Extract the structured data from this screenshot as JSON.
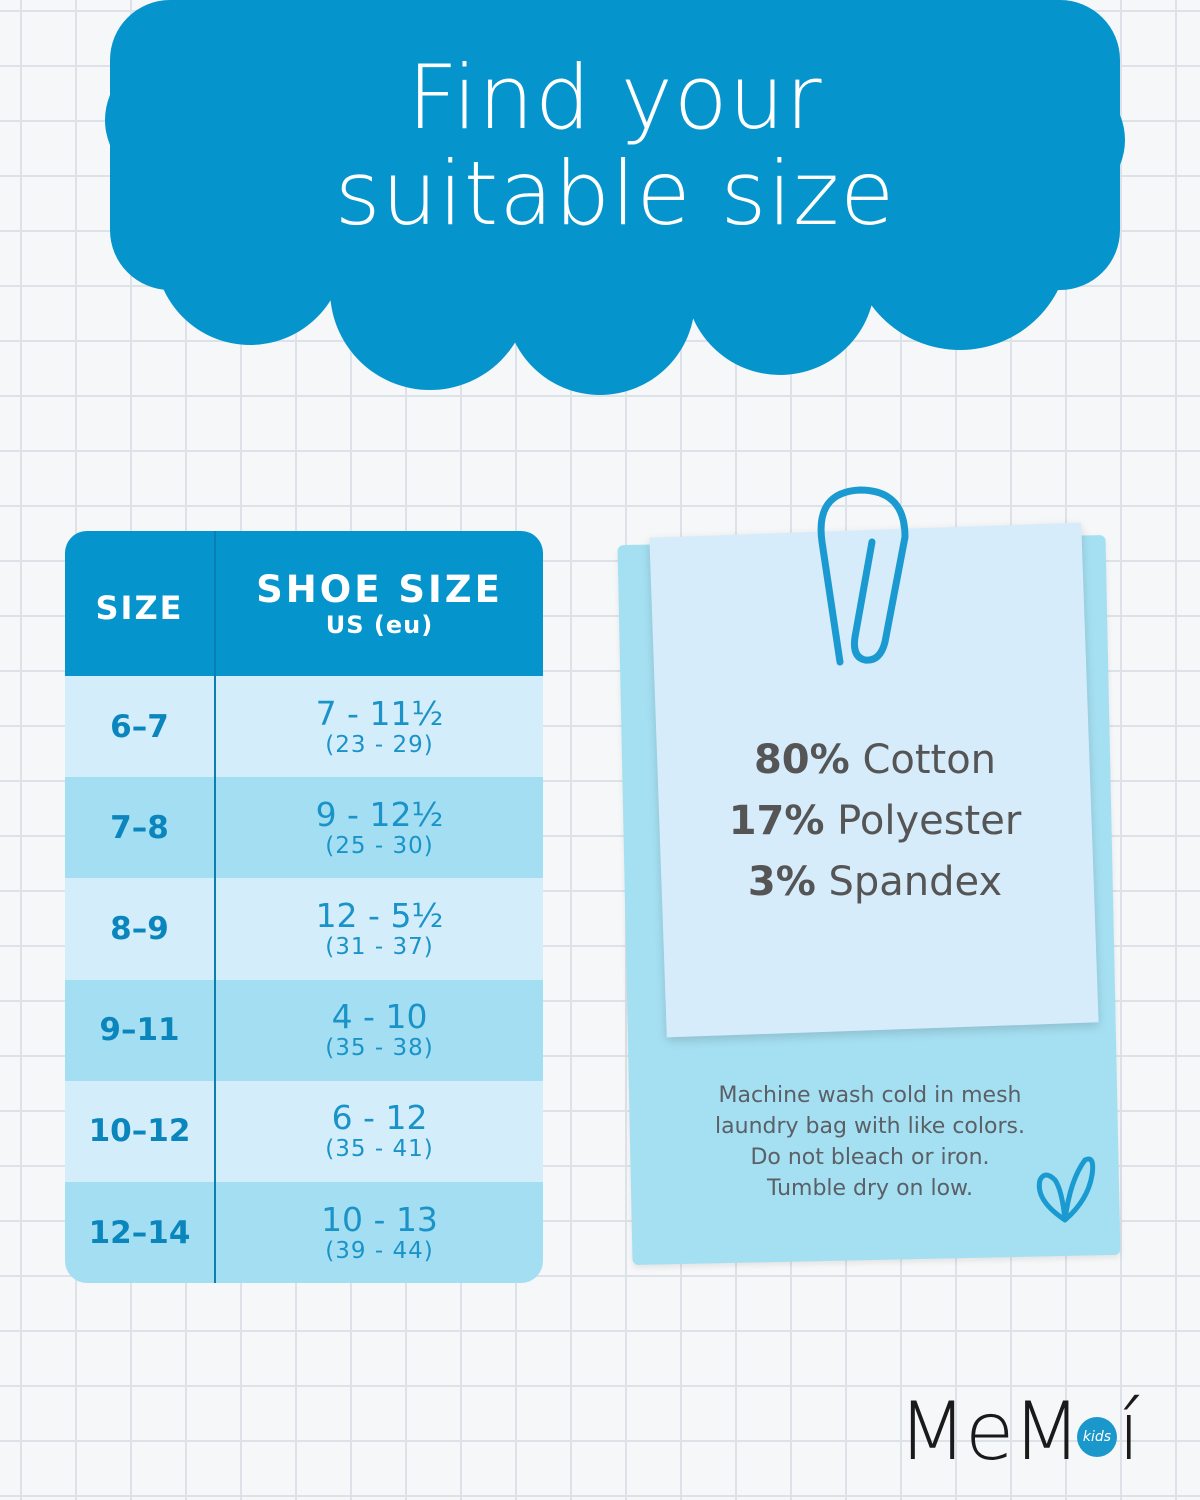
{
  "title": {
    "line1": "Find your",
    "line2": "suitable size"
  },
  "colors": {
    "brand_blue": "#0694cc",
    "row_light": "#d4edfb",
    "row_dark": "#a4def3"
  },
  "table": {
    "headers": {
      "size": "SIZE",
      "shoe": "SHOE SIZE",
      "shoe_sub": "US (eu)"
    },
    "rows": [
      {
        "size": "6–7",
        "us": "7 - 11½",
        "eu": "(23 - 29)"
      },
      {
        "size": "7–8",
        "us": "9 - 12½",
        "eu": "(25 - 30)"
      },
      {
        "size": "8–9",
        "us": "12 - 5½",
        "eu": "(31 - 37)"
      },
      {
        "size": "9–11",
        "us": "4 - 10",
        "eu": "(35 - 38)"
      },
      {
        "size": "10–12",
        "us": "6 - 12",
        "eu": "(35 - 41)"
      },
      {
        "size": "12–14",
        "us": "10 - 13",
        "eu": "(39 - 44)"
      }
    ]
  },
  "fabric": [
    {
      "pct": "80%",
      "name": "Cotton"
    },
    {
      "pct": "17%",
      "name": "Polyester"
    },
    {
      "pct": "3%",
      "name": "Spandex"
    }
  ],
  "care": [
    "Machine wash cold in mesh",
    "laundry bag with like colors.",
    "Do not bleach or iron.",
    "Tumble dry on low."
  ],
  "logo": {
    "text": "MeMoí",
    "kids": "kids"
  },
  "icons": [
    "paperclip-icon",
    "heart-icon"
  ]
}
